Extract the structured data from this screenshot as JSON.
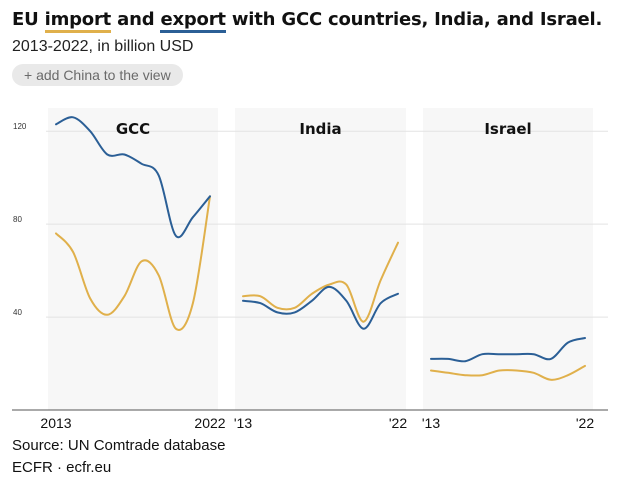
{
  "title": {
    "prefix": "EU ",
    "import_word": "import",
    "middle": " and ",
    "export_word": "export",
    "suffix": " with GCC countries, India, and Israel."
  },
  "subtitle": "2013-2022, in billion USD",
  "add_button": "+ add China to the view",
  "footer": {
    "source": "Source: UN Comtrade database",
    "credit": "ECFR · ecfr.eu"
  },
  "colors": {
    "import": "#e0b04b",
    "export": "#2b5f96",
    "panel_bg": "#f7f7f7",
    "grid": "#e3e3e3"
  },
  "chart_data": {
    "type": "line",
    "ylim": [
      0,
      130
    ],
    "yticks": [
      40,
      80,
      120
    ],
    "grid": true,
    "panels": [
      {
        "title": "GCC",
        "x": [
          2013,
          2014,
          2015,
          2016,
          2017,
          2018,
          2019,
          2020,
          2021,
          2022
        ],
        "x_tick_labels": [
          "2013",
          "2022"
        ],
        "series": [
          {
            "name": "import",
            "values": [
              76,
              68,
              48,
              41,
              49,
              64,
              58,
              35,
              46,
              92
            ]
          },
          {
            "name": "export",
            "values": [
              123,
              126,
              120,
              110,
              110,
              106,
              101,
              75,
              83,
              92
            ]
          }
        ]
      },
      {
        "title": "India",
        "x": [
          2013,
          2014,
          2015,
          2016,
          2017,
          2018,
          2019,
          2020,
          2021,
          2022
        ],
        "x_tick_labels": [
          "'13",
          "'22"
        ],
        "series": [
          {
            "name": "import",
            "values": [
              49,
              49,
              44,
              44,
              50,
              54,
              54,
              38,
              56,
              72
            ]
          },
          {
            "name": "export",
            "values": [
              47,
              46,
              42,
              42,
              47,
              53,
              47,
              35,
              46,
              50
            ]
          }
        ]
      },
      {
        "title": "Israel",
        "x": [
          2013,
          2014,
          2015,
          2016,
          2017,
          2018,
          2019,
          2020,
          2021,
          2022
        ],
        "x_tick_labels": [
          "'13",
          "'22"
        ],
        "series": [
          {
            "name": "import",
            "values": [
              17,
              16,
              15,
              15,
              17,
              17,
              16,
              13,
              15,
              19
            ]
          },
          {
            "name": "export",
            "values": [
              22,
              22,
              21,
              24,
              24,
              24,
              24,
              22,
              29,
              31
            ]
          }
        ]
      }
    ]
  }
}
